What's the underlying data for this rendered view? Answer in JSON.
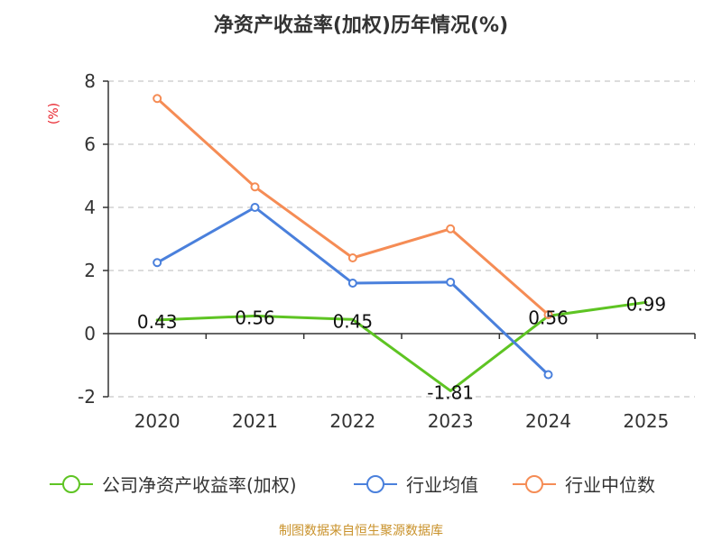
{
  "title": "净资产收益率(加权)历年情况(%)",
  "source": "制图数据来自恒生聚源数据库",
  "colors": {
    "title": "#333333",
    "unit": "#e8212a",
    "axis": "#333333",
    "grid": "#c8c8c8",
    "source": "#c9922b"
  },
  "chart_data": {
    "type": "line",
    "ylabel": "(%)",
    "ylim": [
      -2,
      8
    ],
    "yticks": [
      -2,
      0,
      2,
      4,
      6,
      8
    ],
    "grid": "horizontal dashed",
    "legend_position": "bottom",
    "categories": [
      "2020",
      "2021",
      "2022",
      "2023",
      "2024",
      "2025"
    ],
    "series": [
      {
        "name": "公司净资产收益率(加权)",
        "color": "#5ec423",
        "values": [
          0.43,
          0.56,
          0.45,
          -1.81,
          0.56,
          0.99
        ],
        "labels": [
          "0.43",
          "0.56",
          "0.45",
          "-1.81",
          "0.56",
          "0.99"
        ],
        "show_markers": false
      },
      {
        "name": "行业均值",
        "color": "#4a80dc",
        "values": [
          2.25,
          4.0,
          1.6,
          1.63,
          -1.3,
          null
        ],
        "show_markers": true
      },
      {
        "name": "行业中位数",
        "color": "#f58c55",
        "values": [
          7.45,
          4.65,
          2.4,
          3.32,
          0.6,
          null
        ],
        "show_markers": true
      }
    ]
  }
}
